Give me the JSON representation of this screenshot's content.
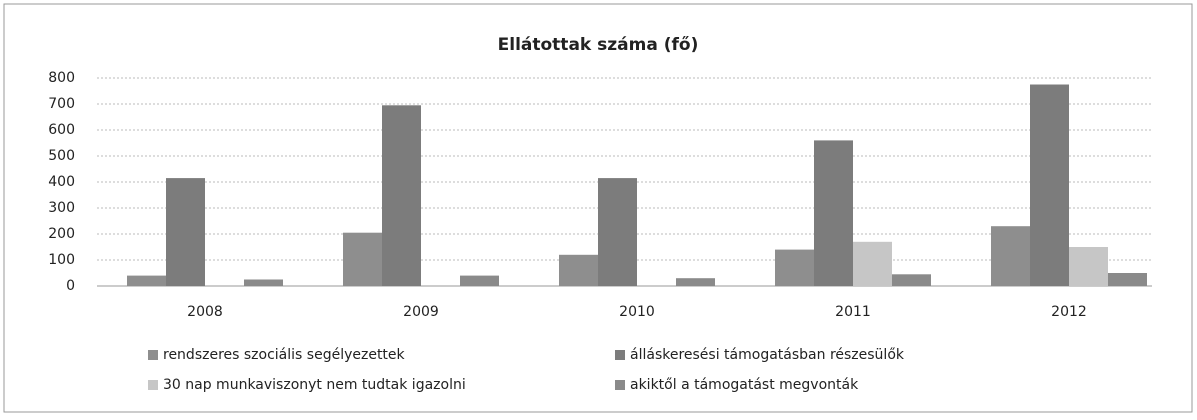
{
  "chart_data": {
    "type": "bar",
    "title": "Ellátottak száma (fő)",
    "categories": [
      "2008",
      "2009",
      "2010",
      "2011",
      "2012"
    ],
    "series": [
      {
        "name": "rendszeres szociális segélyezettek",
        "color": "#8e8e8e",
        "values": [
          40,
          205,
          120,
          140,
          230
        ]
      },
      {
        "name": "álláskeresési támogatásban részesülők",
        "color": "#7c7c7c",
        "values": [
          415,
          695,
          415,
          560,
          775
        ]
      },
      {
        "name": "30 nap munkaviszonyt nem tudtak igazolni",
        "color": "#c6c6c6",
        "values": [
          0,
          0,
          0,
          170,
          150
        ]
      },
      {
        "name": "akiktől a támogatást megvonták",
        "color": "#8a8a8a",
        "values": [
          25,
          40,
          30,
          45,
          50
        ]
      }
    ],
    "ylim": [
      0,
      800
    ],
    "yticks": [
      0,
      100,
      200,
      300,
      400,
      500,
      600,
      700,
      800
    ],
    "grid": true
  }
}
